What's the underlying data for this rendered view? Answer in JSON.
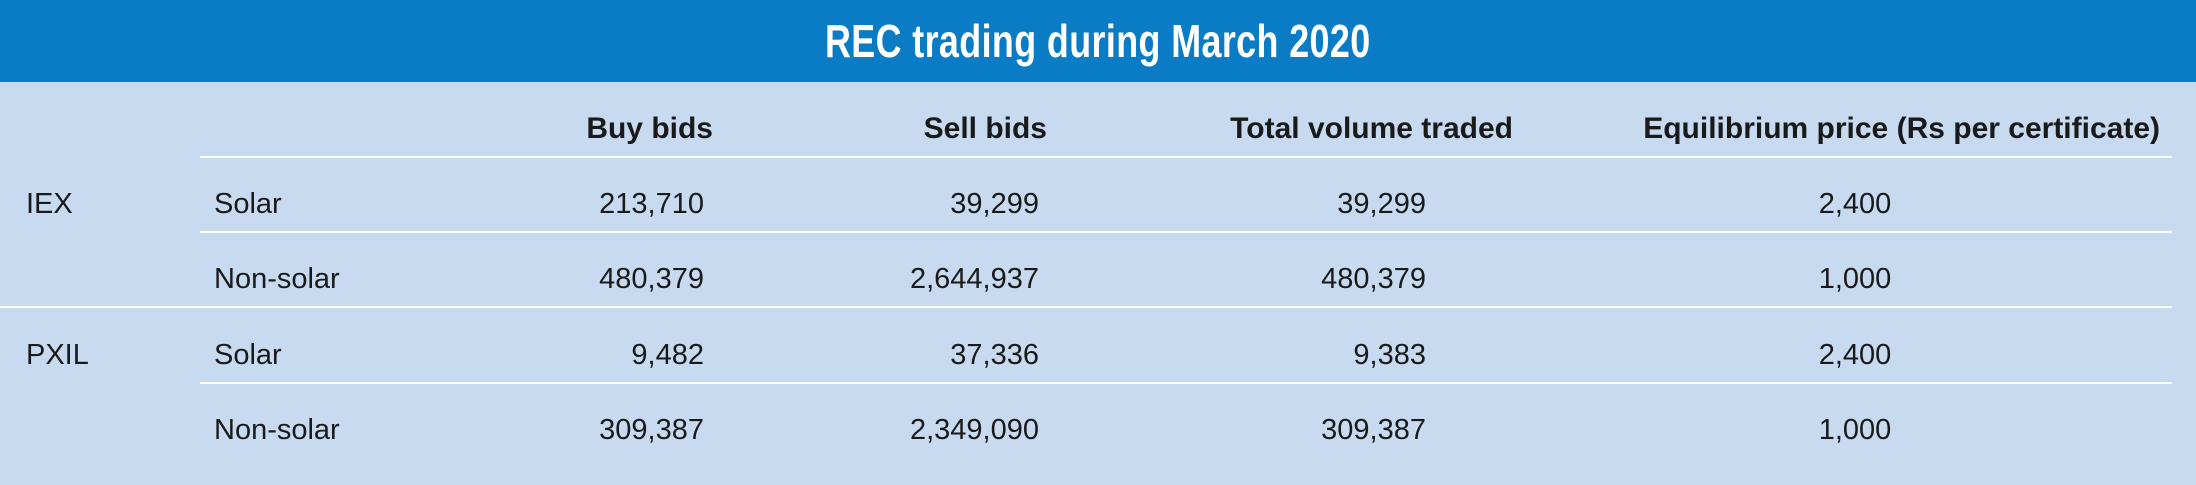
{
  "title": "REC trading during March 2020",
  "columns": {
    "buy": "Buy bids",
    "sell": "Sell bids",
    "volume": "Total volume traded",
    "price": "Equilibrium price (Rs per certificate)"
  },
  "rows": [
    {
      "exchange": "IEX",
      "type": "Solar",
      "buy": "213,710",
      "sell": "39,299",
      "volume": "39,299",
      "price": "2,400"
    },
    {
      "exchange": "",
      "type": "Non-solar",
      "buy": "480,379",
      "sell": "2,644,937",
      "volume": "480,379",
      "price": "1,000"
    },
    {
      "exchange": "PXIL",
      "type": "Solar",
      "buy": "9,482",
      "sell": "37,336",
      "volume": "9,383",
      "price": "2,400"
    },
    {
      "exchange": "",
      "type": "Non-solar",
      "buy": "309,387",
      "sell": "2,349,090",
      "volume": "309,387",
      "price": "1,000"
    }
  ],
  "colors": {
    "title_bar": "#0a7cc5",
    "panel": "#c7daf0",
    "rules": "#ffffff"
  }
}
